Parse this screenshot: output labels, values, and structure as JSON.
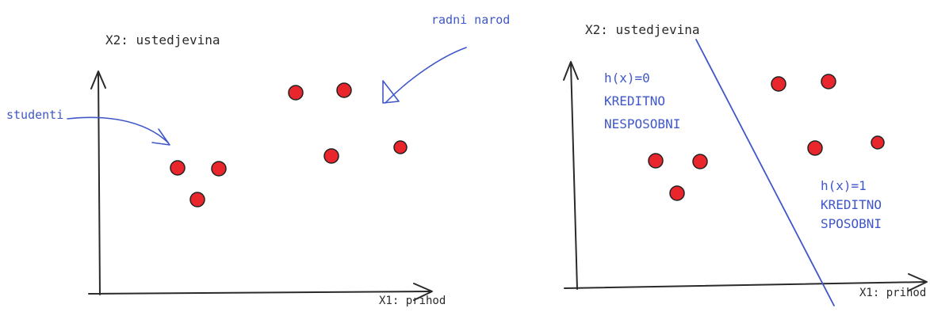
{
  "colors": {
    "ink": "#2a2a2a",
    "annotation_blue": "#3f57c9",
    "point_fill": "#e8262c",
    "point_stroke": "#222222"
  },
  "left_panel": {
    "y_axis_label": "X2: ustedjevina",
    "x_axis_label": "X1: prihod",
    "annotation_students": "studenti",
    "annotation_workers": "radni narod",
    "point_count": 7
  },
  "right_panel": {
    "y_axis_label": "X2: ustedjevina",
    "x_axis_label": "X1: prihod",
    "class0_lines": [
      "h(x)=0",
      "KREDITNO",
      "NESPOSOBNI"
    ],
    "class1_lines": [
      "h(x)=1",
      "KREDITNO",
      "SPOSOBNI"
    ],
    "point_count": 7
  }
}
